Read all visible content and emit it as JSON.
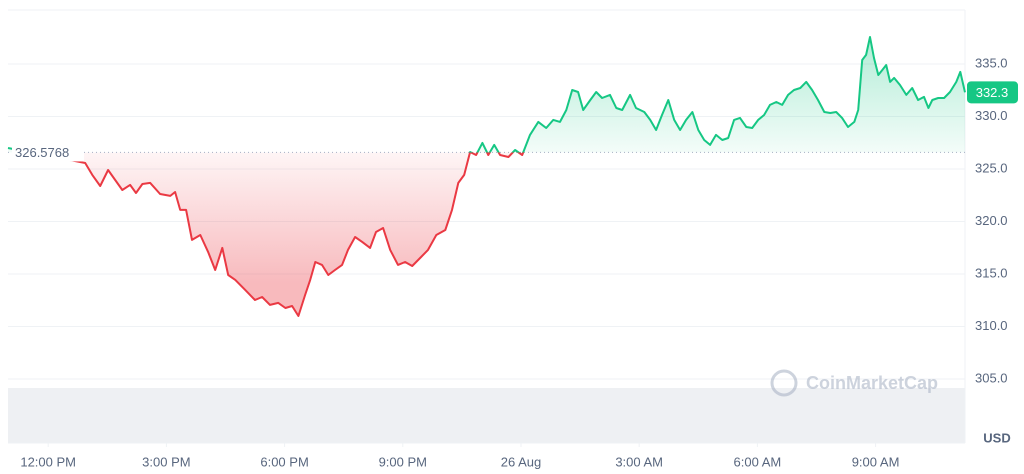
{
  "chart_data": {
    "type": "line",
    "x": [
      -1.02,
      0.94,
      1.12,
      1.32,
      1.52,
      1.7,
      1.88,
      2.08,
      2.23,
      2.39,
      2.59,
      2.84,
      3.1,
      3.22,
      3.35,
      3.5,
      3.65,
      3.86,
      4.06,
      4.24,
      4.42,
      4.57,
      4.75,
      5.0,
      5.25,
      5.43,
      5.63,
      5.84,
      6.02,
      6.19,
      6.35,
      6.52,
      6.65,
      6.78,
      6.95,
      7.11,
      7.28,
      7.46,
      7.61,
      7.79,
      7.97,
      8.17,
      8.32,
      8.5,
      8.68,
      8.88,
      9.06,
      9.24,
      9.44,
      9.64,
      9.85,
      10.08,
      10.25,
      10.41,
      10.56,
      10.71,
      10.86,
      11.02,
      11.17,
      11.32,
      11.47,
      11.68,
      11.85,
      12.03,
      12.23,
      12.44,
      12.64,
      12.82,
      12.99,
      13.15,
      13.3,
      13.45,
      13.58,
      13.76,
      13.91,
      14.06,
      14.26,
      14.42,
      14.57,
      14.77,
      14.92,
      15.13,
      15.28,
      15.43,
      15.58,
      15.74,
      15.89,
      16.04,
      16.19,
      16.35,
      16.5,
      16.65,
      16.8,
      16.95,
      17.11,
      17.26,
      17.41,
      17.56,
      17.72,
      17.87,
      18.02,
      18.17,
      18.32,
      18.48,
      18.63,
      18.78,
      18.93,
      19.09,
      19.24,
      19.39,
      19.54,
      19.7,
      19.85,
      20.0,
      20.15,
      20.3,
      20.46,
      20.56,
      20.66,
      20.76,
      20.86,
      20.96,
      21.07,
      21.17,
      21.27,
      21.37,
      21.47,
      21.62,
      21.78,
      21.93,
      22.08,
      22.23,
      22.34,
      22.44,
      22.59,
      22.74,
      22.89,
      23.05,
      23.15,
      23.27
    ],
    "values": [
      327.0,
      325.57,
      324.43,
      323.38,
      324.9,
      323.95,
      323.0,
      323.48,
      322.71,
      323.57,
      323.67,
      322.62,
      322.43,
      322.81,
      321.1,
      321.1,
      318.24,
      318.71,
      317.1,
      315.38,
      317.48,
      314.9,
      314.43,
      313.48,
      312.52,
      312.81,
      312.05,
      312.24,
      311.76,
      311.95,
      311.0,
      313.0,
      314.43,
      316.14,
      315.86,
      314.9,
      315.38,
      315.86,
      317.29,
      318.52,
      318.05,
      317.48,
      319.0,
      319.38,
      317.29,
      315.86,
      316.14,
      315.76,
      316.52,
      317.29,
      318.71,
      319.19,
      321.1,
      323.67,
      324.43,
      326.62,
      326.33,
      327.48,
      326.33,
      327.29,
      326.33,
      326.14,
      326.81,
      326.33,
      328.24,
      329.48,
      328.9,
      329.67,
      329.48,
      330.62,
      332.52,
      332.33,
      330.62,
      331.57,
      332.33,
      331.76,
      332.05,
      330.81,
      330.62,
      332.05,
      330.81,
      330.43,
      329.67,
      328.71,
      330.14,
      331.57,
      329.67,
      328.71,
      329.67,
      330.43,
      328.71,
      327.76,
      327.29,
      328.24,
      327.76,
      327.95,
      329.67,
      329.86,
      329.0,
      328.9,
      329.67,
      330.14,
      331.1,
      331.38,
      331.1,
      332.05,
      332.52,
      332.71,
      333.29,
      332.52,
      331.57,
      330.43,
      330.33,
      330.43,
      329.86,
      329.0,
      329.48,
      330.62,
      335.38,
      335.86,
      337.57,
      335.57,
      333.95,
      334.43,
      334.9,
      333.29,
      333.67,
      333.0,
      332.05,
      332.71,
      331.57,
      331.86,
      330.81,
      331.57,
      331.76,
      331.76,
      332.33,
      333.29,
      334.24,
      332.3
    ],
    "color_up": "#16c784",
    "color_down": "#ea3943",
    "baseline": 326.5768,
    "current_price": 332.3,
    "xlim": [
      -1.02,
      23.27
    ],
    "xticks": [
      {
        "value": 0,
        "label": "12:00 PM"
      },
      {
        "value": 3,
        "label": "3:00 PM"
      },
      {
        "value": 6,
        "label": "6:00 PM"
      },
      {
        "value": 9,
        "label": "9:00 PM"
      },
      {
        "value": 12,
        "label": "26 Aug"
      },
      {
        "value": 15,
        "label": "3:00 AM"
      },
      {
        "value": 18,
        "label": "6:00 AM"
      },
      {
        "value": 21,
        "label": "9:00 AM"
      }
    ],
    "ylim": [
      298.9,
      340.14
    ],
    "yticks": [
      {
        "value": 305,
        "label": "305.0"
      },
      {
        "value": 310,
        "label": "310.0"
      },
      {
        "value": 315,
        "label": "315.0"
      },
      {
        "value": 320,
        "label": "320.0"
      },
      {
        "value": 325,
        "label": "325.0"
      },
      {
        "value": 330,
        "label": "330.0"
      },
      {
        "value": 335,
        "label": "335.0"
      }
    ],
    "grid": true,
    "y_unit": "USD",
    "watermark": "CoinMarketCap"
  }
}
